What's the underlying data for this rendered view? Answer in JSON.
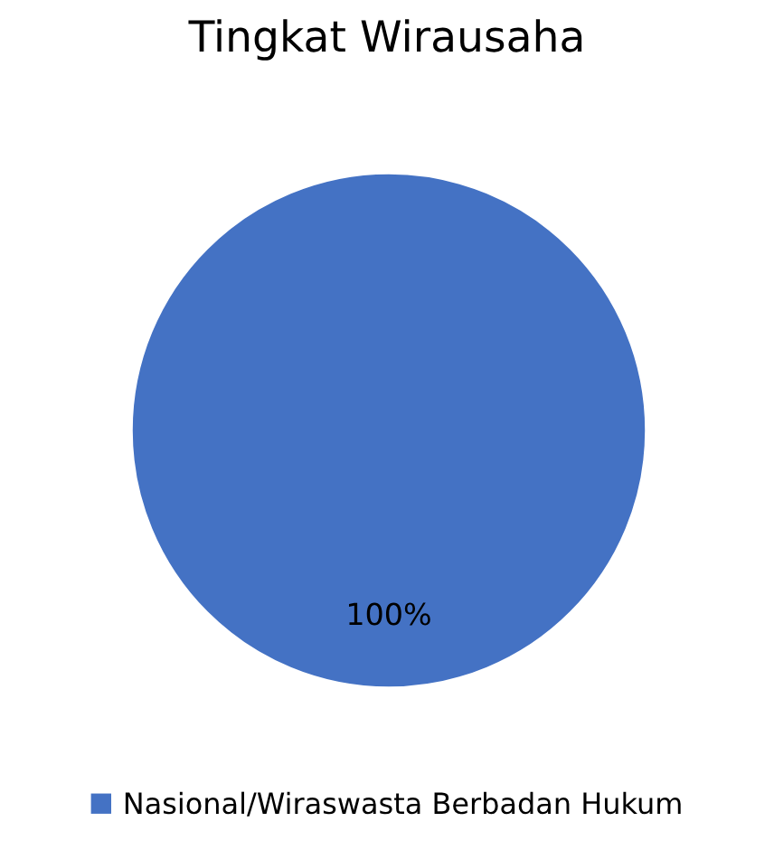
{
  "chart_data": {
    "type": "pie",
    "title": "Tingkat Wirausaha",
    "categories": [
      "Nasional/Wiraswasta Berbadan Hukum"
    ],
    "values": [
      100
    ],
    "colors": [
      "#4472c4"
    ],
    "value_labels": [
      "100%"
    ],
    "legend": "bottom"
  }
}
